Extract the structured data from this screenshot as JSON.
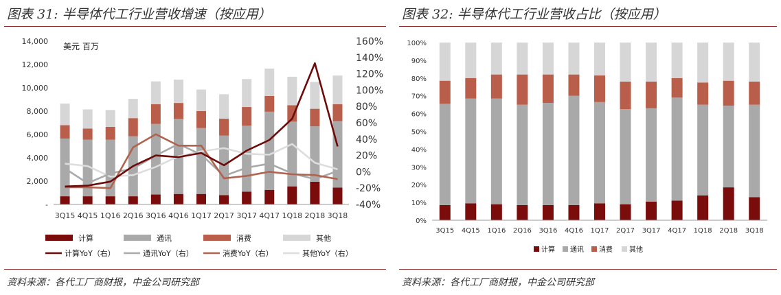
{
  "left_panel": {
    "title": "图表 31:  半导体代工行业营收增速（按应用）",
    "source": "资料来源：各代工厂商财报，中金公司研究部"
  },
  "right_panel": {
    "title": "图表 32:  半导体代工行业营收占比（按应用）",
    "source": "资料来源：各代工厂商财报，中金公司研究部"
  },
  "colors": {
    "rule": "#8a2a2a",
    "computing": "#7b0c0c",
    "comms": "#a9a9a9",
    "consumer": "#b85e4a",
    "other": "#d6d6d6",
    "line_computing": "#6d0a0a",
    "line_comms": "#a9a9a9",
    "line_consumer": "#b0634e",
    "line_other": "#dddddd"
  },
  "chart_data": [
    {
      "type": "bar",
      "subtype": "stacked_bar_with_lines",
      "title": "半导体代工行业营收增速（按应用）",
      "unit_label": "美元  百万",
      "categories": [
        "3Q15",
        "4Q15",
        "1Q16",
        "2Q16",
        "3Q16",
        "4Q16",
        "1Q17",
        "2Q17",
        "3Q17",
        "4Q17",
        "1Q18",
        "2Q18",
        "3Q18"
      ],
      "ylim": [
        0,
        14000
      ],
      "yticks": [
        "-",
        "2,000",
        "4,000",
        "6,000",
        "8,000",
        "10,000",
        "12,000",
        "14,000"
      ],
      "y2lim": [
        -40,
        160
      ],
      "y2ticks": [
        "-40%",
        "-20%",
        "0%",
        "20%",
        "40%",
        "60%",
        "80%",
        "100%",
        "120%",
        "140%",
        "160%"
      ],
      "series": [
        {
          "name": "计算",
          "values": [
            700,
            700,
            700,
            700,
            850,
            900,
            900,
            800,
            1100,
            1250,
            1550,
            1950,
            1450
          ]
        },
        {
          "name": "通讯",
          "values": [
            4950,
            4850,
            4850,
            5150,
            6050,
            6450,
            5650,
            5100,
            5650,
            6700,
            5550,
            4750,
            5700
          ]
        },
        {
          "name": "消费",
          "values": [
            1150,
            950,
            1100,
            1550,
            1700,
            1350,
            1450,
            1450,
            1600,
            1350,
            1400,
            1500,
            1450
          ]
        },
        {
          "name": "其他",
          "values": [
            1850,
            1650,
            1450,
            1650,
            1950,
            2000,
            1850,
            2100,
            2400,
            2350,
            2450,
            2300,
            2450
          ]
        }
      ],
      "line_series": [
        {
          "name": "计算YoY（右）",
          "values": [
            -18,
            -17,
            -12,
            7,
            20,
            18,
            23,
            8,
            26,
            39,
            65,
            133,
            31
          ]
        },
        {
          "name": "通讯YoY（右）",
          "values": [
            4,
            -14,
            -2,
            4,
            20,
            34,
            21,
            -5,
            5,
            10,
            -2,
            -9,
            1
          ]
        },
        {
          "name": "消费YoY（右）",
          "values": [
            -19,
            -19,
            -20,
            30,
            46,
            32,
            32,
            -8,
            -5,
            0,
            -3,
            -4,
            -9
          ]
        },
        {
          "name": "其他YoY（右）",
          "values": [
            10,
            7,
            -6,
            -4,
            6,
            19,
            25,
            29,
            22,
            21,
            34,
            11,
            3
          ]
        }
      ],
      "legend": [
        "计算",
        "通讯",
        "消费",
        "其他",
        "计算YoY（右）",
        "通讯YoY（右）",
        "消费YoY（右）",
        "其他YoY（右）"
      ],
      "legend_position": "bottom"
    },
    {
      "type": "bar",
      "subtype": "stacked_bar_percent",
      "title": "半导体代工行业营收占比（按应用）",
      "categories": [
        "3Q15",
        "4Q15",
        "1Q16",
        "2Q16",
        "3Q16",
        "4Q16",
        "1Q17",
        "2Q17",
        "3Q17",
        "4Q17",
        "1Q18",
        "2Q18",
        "3Q18"
      ],
      "ylim": [
        0,
        100
      ],
      "yticks": [
        "0%",
        "10%",
        "20%",
        "30%",
        "40%",
        "50%",
        "60%",
        "70%",
        "80%",
        "90%",
        "100%"
      ],
      "series": [
        {
          "name": "计算",
          "values": [
            8.5,
            9.5,
            9,
            8.5,
            8.5,
            8.5,
            9.5,
            9,
            10.5,
            11,
            14,
            18.5,
            13
          ]
        },
        {
          "name": "通讯",
          "values": [
            57,
            59,
            59.5,
            56.5,
            57.5,
            61.5,
            57,
            53.5,
            52.5,
            58,
            51,
            46,
            52
          ]
        },
        {
          "name": "消费",
          "values": [
            13,
            11.5,
            13.5,
            17,
            16,
            12,
            15,
            15.5,
            15,
            11,
            12.5,
            14,
            13
          ]
        },
        {
          "name": "其他",
          "values": [
            21.5,
            20,
            18,
            18,
            18,
            18,
            18.5,
            22,
            22,
            20,
            22.5,
            21.5,
            22
          ]
        }
      ],
      "legend": [
        "计算",
        "通讯",
        "消费",
        "其他"
      ],
      "legend_position": "bottom"
    }
  ]
}
